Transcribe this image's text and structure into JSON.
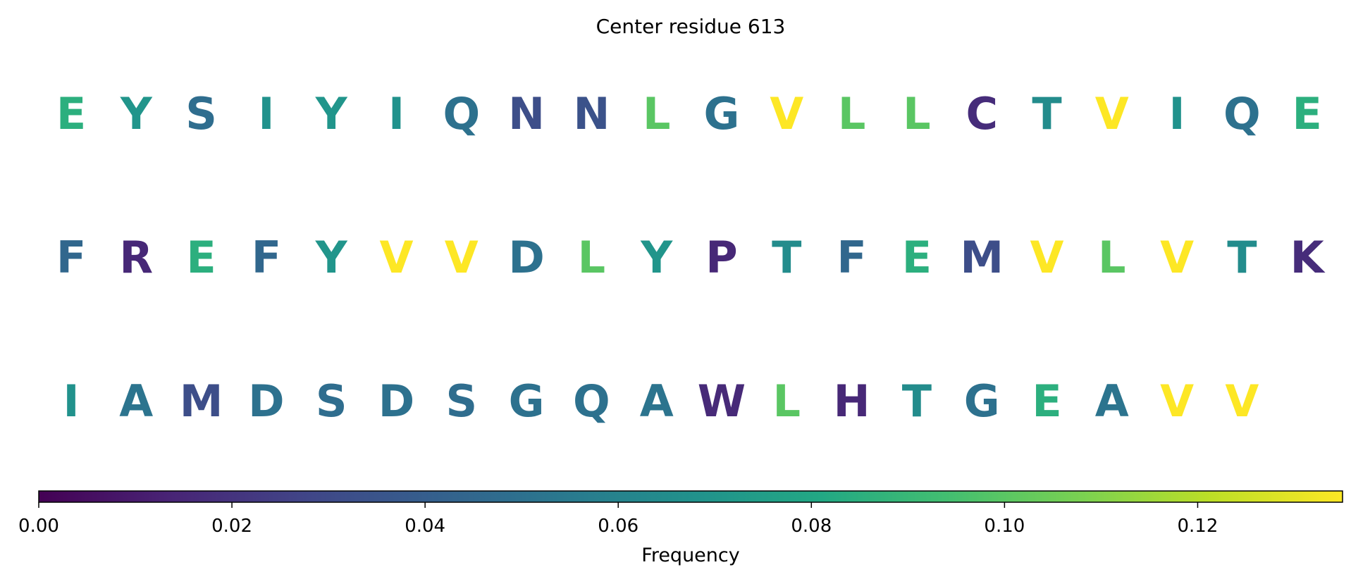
{
  "chart_data": {
    "type": "heatmap",
    "title": "Center residue 613",
    "rows": [
      {
        "residues": [
          "E",
          "Y",
          "S",
          "I",
          "Y",
          "I",
          "Q",
          "N",
          "N",
          "L",
          "G",
          "V",
          "L",
          "L",
          "C",
          "T",
          "V",
          "I",
          "Q",
          "E"
        ],
        "frequencies": [
          0.085,
          0.07,
          0.048,
          0.068,
          0.07,
          0.068,
          0.05,
          0.032,
          0.034,
          0.1,
          0.05,
          0.135,
          0.1,
          0.1,
          0.017,
          0.065,
          0.135,
          0.068,
          0.05,
          0.085
        ]
      },
      {
        "residues": [
          "F",
          "R",
          "E",
          "F",
          "Y",
          "V",
          "V",
          "D",
          "L",
          "Y",
          "P",
          "T",
          "F",
          "E",
          "M",
          "V",
          "L",
          "V",
          "T",
          "K"
        ],
        "frequencies": [
          0.045,
          0.015,
          0.085,
          0.045,
          0.07,
          0.135,
          0.135,
          0.05,
          0.1,
          0.07,
          0.015,
          0.065,
          0.045,
          0.085,
          0.032,
          0.135,
          0.1,
          0.135,
          0.065,
          0.017
        ]
      },
      {
        "residues": [
          "I",
          "A",
          "M",
          "D",
          "S",
          "D",
          "S",
          "G",
          "Q",
          "A",
          "W",
          "L",
          "H",
          "T",
          "G",
          "E",
          "A",
          "V",
          "V"
        ],
        "frequencies": [
          0.068,
          0.052,
          0.032,
          0.05,
          0.048,
          0.05,
          0.048,
          0.05,
          0.05,
          0.052,
          0.016,
          0.1,
          0.015,
          0.065,
          0.05,
          0.085,
          0.052,
          0.135,
          0.135
        ]
      }
    ],
    "colorbar": {
      "colormap": "viridis",
      "range": [
        0.0,
        0.135
      ],
      "ticks": [
        0.0,
        0.02,
        0.04,
        0.06,
        0.08,
        0.1,
        0.12
      ],
      "tick_labels": [
        "0.00",
        "0.02",
        "0.04",
        "0.06",
        "0.08",
        "0.10",
        "0.12"
      ],
      "label": "Frequency"
    }
  }
}
